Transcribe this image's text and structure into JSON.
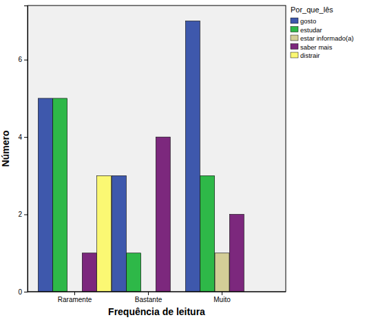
{
  "chart_data": {
    "type": "bar",
    "x_label": "Frequência de leitura",
    "y_label": "Número",
    "legend_title": "Por_que_lês",
    "categories": [
      "Raramente",
      "Bastante",
      "Muito"
    ],
    "series": [
      {
        "name": "gosto",
        "color": "#3e58ac",
        "values": [
          5,
          3,
          7
        ]
      },
      {
        "name": "estudar",
        "color": "#2eb848",
        "values": [
          5,
          1,
          3
        ]
      },
      {
        "name": "estar informado(a)",
        "color": "#d3ce97",
        "values": [
          0,
          0,
          1
        ]
      },
      {
        "name": "saber mais",
        "color": "#7c287d",
        "values": [
          1,
          4,
          2
        ]
      },
      {
        "name": "distrair",
        "color": "#fbf873",
        "values": [
          3,
          0,
          0
        ]
      }
    ],
    "ylim": [
      0,
      7.4
    ],
    "yticks": [
      0,
      2,
      4,
      6
    ],
    "legend": "top-right",
    "grid": false
  }
}
